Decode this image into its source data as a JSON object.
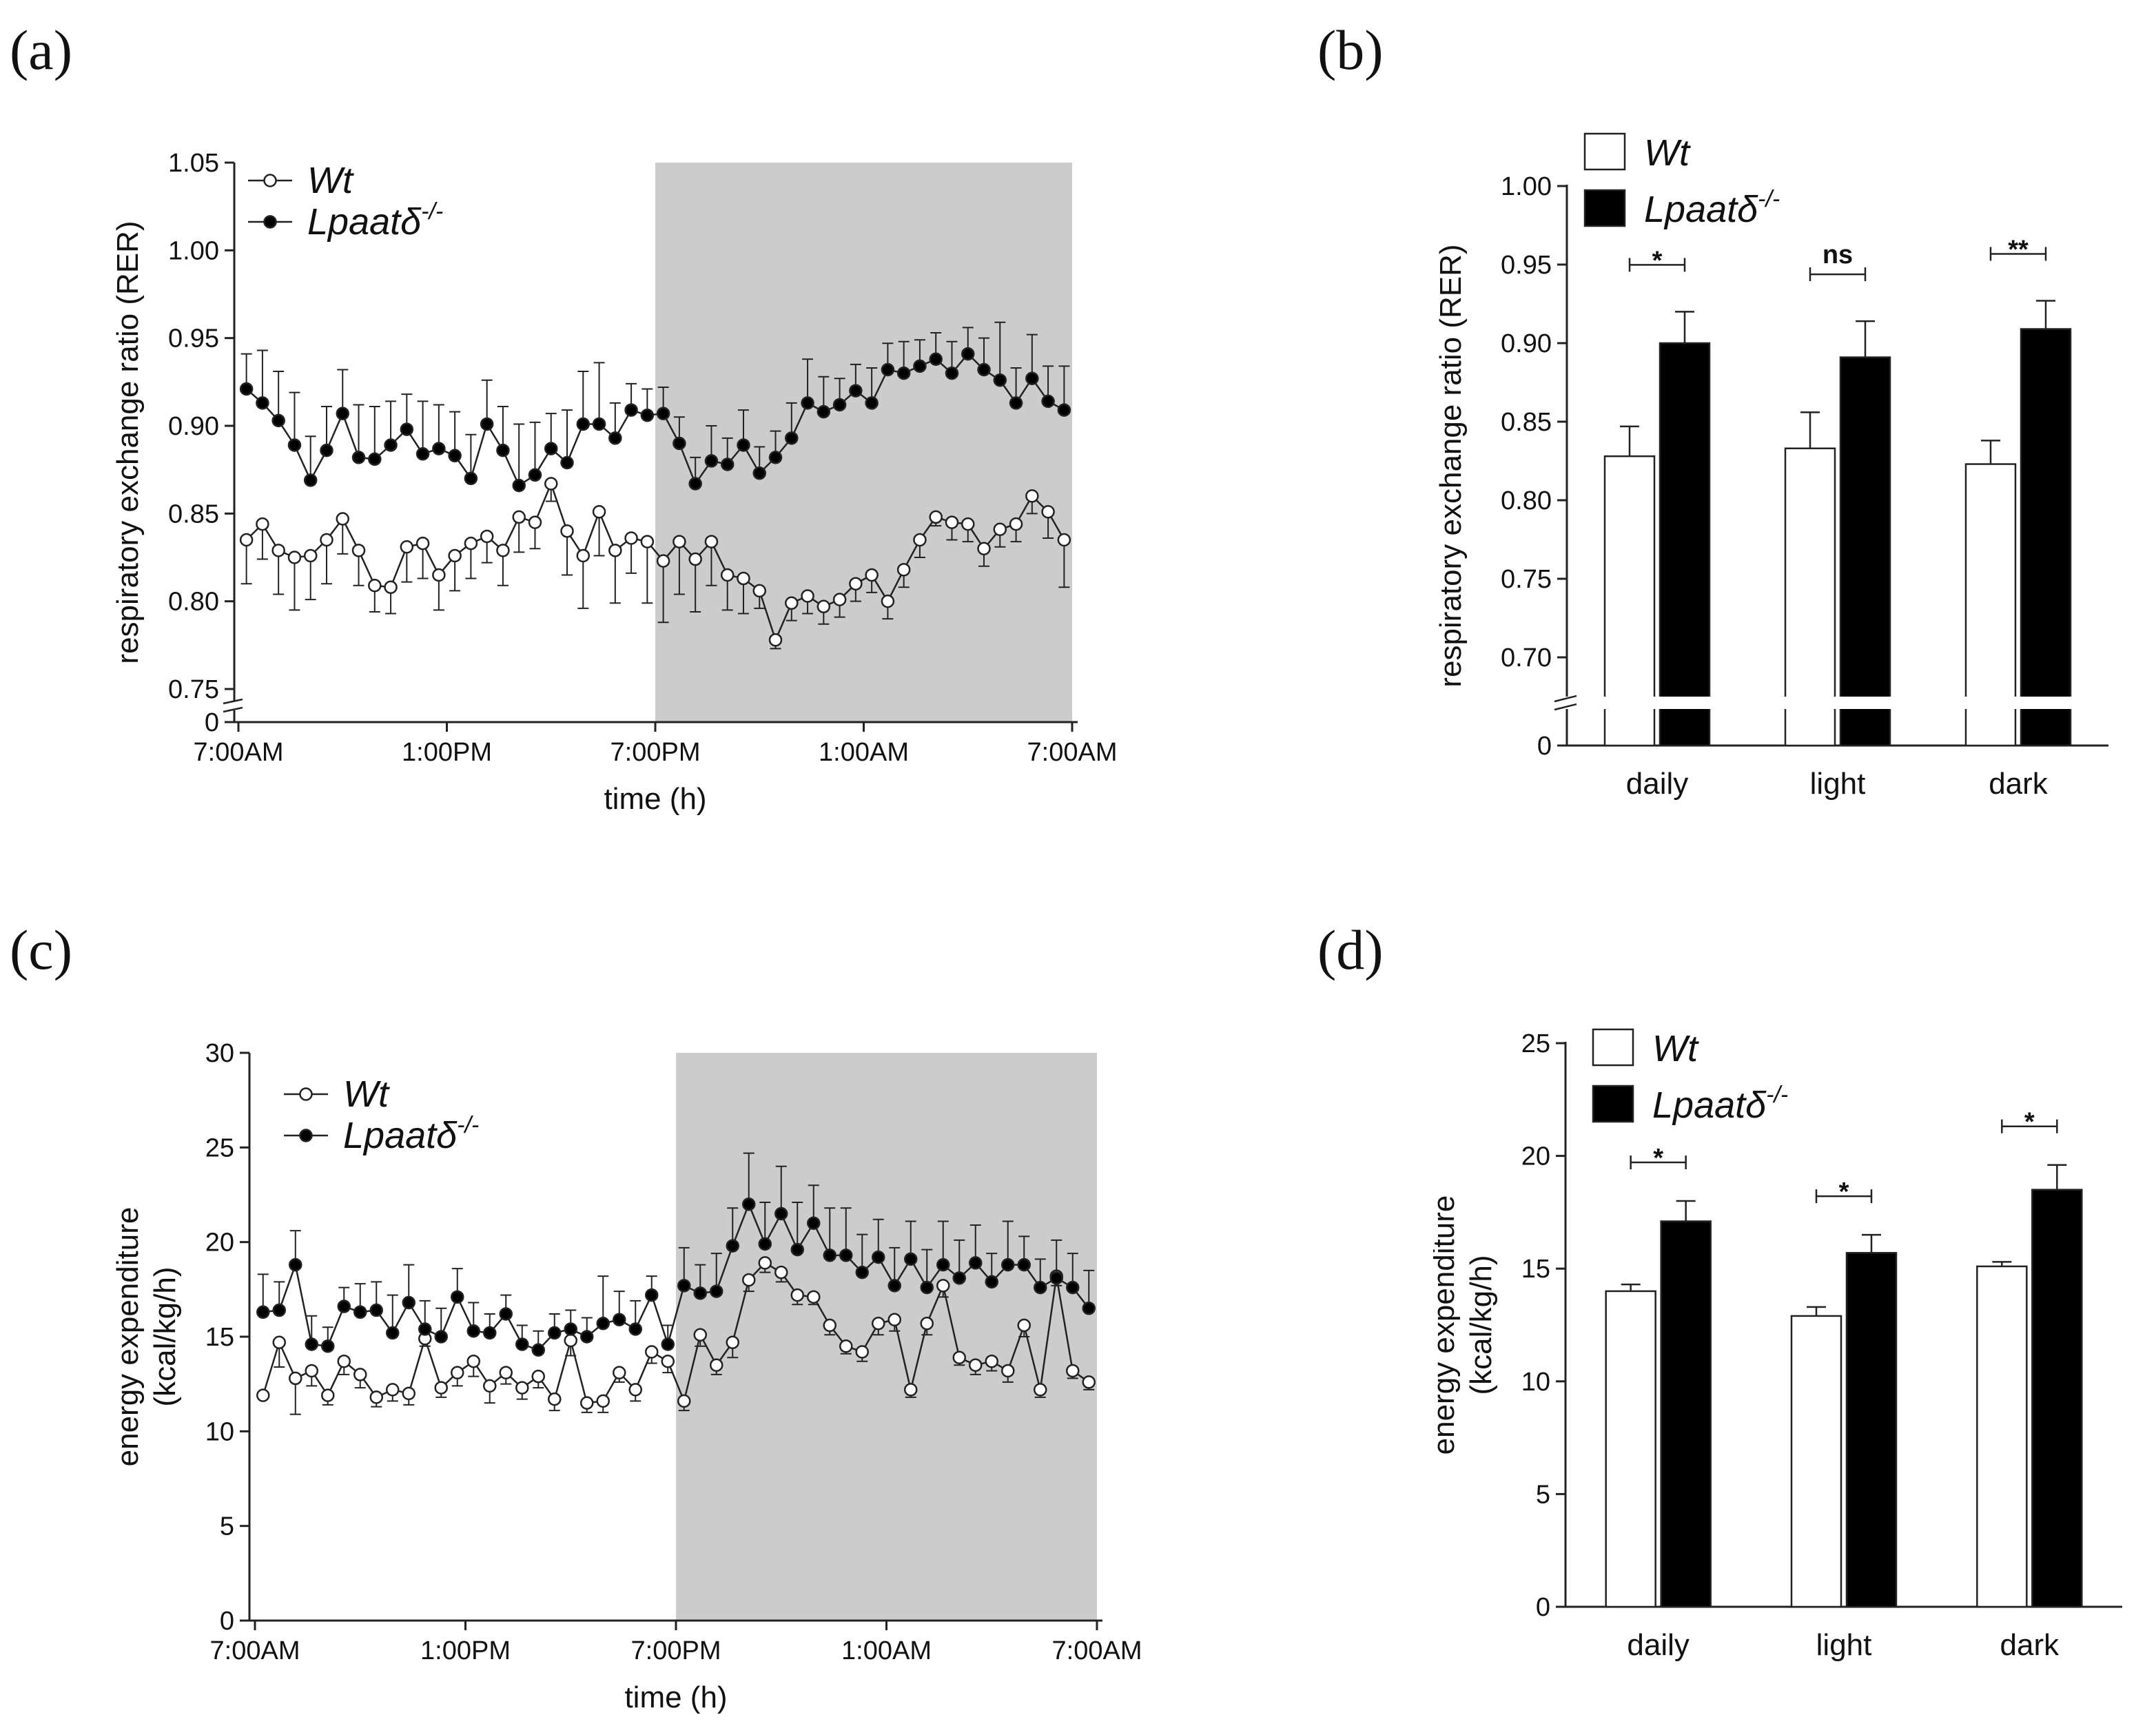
{
  "figure": {
    "panel_labels": [
      "(a)",
      "(b)",
      "(c)",
      "(d)"
    ]
  },
  "colors": {
    "wt_fill": "#ffffff",
    "ko_fill": "#000000",
    "dark_phase": "#cccccc",
    "line": "#222222"
  },
  "chart_data": [
    {
      "id": "a",
      "type": "line",
      "title": "",
      "xlabel": "time (h)",
      "ylabel": "respiratory exchange ratio (RER)",
      "x_ticks": [
        "7:00AM",
        "1:00PM",
        "7:00PM",
        "1:00AM",
        "7:00AM"
      ],
      "x_range_h": [
        0,
        24
      ],
      "y_ticks": [
        "0",
        "0.75",
        "0.80",
        "0.85",
        "0.90",
        "0.95",
        "1.00",
        "1.05"
      ],
      "ylim": [
        0.75,
        1.05
      ],
      "y_break": true,
      "shaded_region_h": [
        12,
        24
      ],
      "legend": [
        "Wt",
        "Lpaatδ-/-"
      ],
      "series": [
        {
          "name": "Wt",
          "marker": "open",
          "values": [
            0.835,
            0.844,
            0.829,
            0.825,
            0.826,
            0.835,
            0.847,
            0.829,
            0.809,
            0.808,
            0.831,
            0.833,
            0.815,
            0.826,
            0.833,
            0.837,
            0.829,
            0.848,
            0.845,
            0.867,
            0.84,
            0.826,
            0.851,
            0.829,
            0.836,
            0.834,
            0.823,
            0.834,
            0.824,
            0.834,
            0.815,
            0.813,
            0.806,
            0.778,
            0.799,
            0.803,
            0.797,
            0.801,
            0.81,
            0.815,
            0.8,
            0.818,
            0.835,
            0.848,
            0.845,
            0.844,
            0.83,
            0.841,
            0.844,
            0.86,
            0.851,
            0.835
          ],
          "errors": [
            0.025,
            0.02,
            0.025,
            0.03,
            0.025,
            0.025,
            0.02,
            0.02,
            0.015,
            0.015,
            0.02,
            0.02,
            0.02,
            0.02,
            0.02,
            0.015,
            0.02,
            0.02,
            0.015,
            0.01,
            0.025,
            0.03,
            0.025,
            0.03,
            0.02,
            0.035,
            0.035,
            0.03,
            0.03,
            0.025,
            0.02,
            0.02,
            0.01,
            0.005,
            0.01,
            0.01,
            0.01,
            0.01,
            0.01,
            0.01,
            0.01,
            0.01,
            0.01,
            0.005,
            0.01,
            0.01,
            0.01,
            0.01,
            0.01,
            0.01,
            0.015,
            0.027
          ]
        },
        {
          "name": "Lpaatδ-/-",
          "marker": "filled",
          "values": [
            0.921,
            0.913,
            0.903,
            0.889,
            0.869,
            0.886,
            0.907,
            0.882,
            0.881,
            0.889,
            0.898,
            0.884,
            0.887,
            0.883,
            0.87,
            0.901,
            0.886,
            0.866,
            0.872,
            0.887,
            0.879,
            0.901,
            0.901,
            0.893,
            0.909,
            0.906,
            0.907,
            0.89,
            0.867,
            0.88,
            0.878,
            0.889,
            0.873,
            0.882,
            0.893,
            0.913,
            0.908,
            0.912,
            0.92,
            0.913,
            0.932,
            0.93,
            0.934,
            0.938,
            0.93,
            0.941,
            0.932,
            0.926,
            0.913,
            0.927,
            0.914,
            0.909
          ],
          "errors": [
            0.02,
            0.03,
            0.028,
            0.03,
            0.025,
            0.025,
            0.025,
            0.03,
            0.03,
            0.025,
            0.02,
            0.03,
            0.025,
            0.025,
            0.025,
            0.025,
            0.025,
            0.035,
            0.03,
            0.02,
            0.03,
            0.03,
            0.035,
            0.02,
            0.015,
            0.015,
            0.015,
            0.015,
            0.015,
            0.02,
            0.015,
            0.02,
            0.015,
            0.015,
            0.02,
            0.025,
            0.02,
            0.015,
            0.015,
            0.02,
            0.015,
            0.018,
            0.015,
            0.015,
            0.018,
            0.015,
            0.018,
            0.033,
            0.02,
            0.025,
            0.02,
            0.025
          ]
        }
      ]
    },
    {
      "id": "b",
      "type": "bar",
      "title": "",
      "xlabel": "",
      "ylabel": "respiratory exchange ratio (RER)",
      "categories": [
        "daily",
        "light",
        "dark"
      ],
      "y_ticks": [
        "0",
        "0.70",
        "0.75",
        "0.80",
        "0.85",
        "0.90",
        "0.95",
        "1.00"
      ],
      "ylim": [
        0.7,
        1.0
      ],
      "y_break": true,
      "legend": [
        "Wt",
        "Lpaatδ-/-"
      ],
      "series": [
        {
          "name": "Wt",
          "values": [
            0.828,
            0.833,
            0.823
          ],
          "errors": [
            0.019,
            0.023,
            0.015
          ]
        },
        {
          "name": "Lpaatδ-/-",
          "values": [
            0.9,
            0.891,
            0.909
          ],
          "errors": [
            0.02,
            0.023,
            0.018
          ]
        }
      ],
      "significance": [
        "*",
        "ns",
        "**"
      ]
    },
    {
      "id": "c",
      "type": "line",
      "title": "",
      "xlabel": "time (h)",
      "ylabel": "energy expenditure (kcal/kg/h)",
      "ylabel_lines": [
        "energy expenditure",
        "(kcal/kg/h)"
      ],
      "x_ticks": [
        "7:00AM",
        "1:00PM",
        "7:00PM",
        "1:00AM",
        "7:00AM"
      ],
      "x_range_h": [
        0,
        24
      ],
      "y_ticks": [
        "0",
        "5",
        "10",
        "15",
        "20",
        "25",
        "30"
      ],
      "ylim": [
        0,
        30
      ],
      "shaded_region_h": [
        12,
        24
      ],
      "legend": [
        "Wt",
        "Lpaatδ-/-"
      ],
      "series": [
        {
          "name": "Wt",
          "marker": "open",
          "values": [
            11.9,
            14.7,
            12.8,
            13.2,
            11.9,
            13.7,
            13.0,
            11.8,
            12.2,
            12.0,
            14.9,
            12.3,
            13.1,
            13.7,
            12.4,
            13.1,
            12.3,
            12.9,
            11.7,
            14.8,
            11.5,
            11.6,
            13.1,
            12.2,
            14.2,
            13.7,
            11.6,
            15.1,
            13.5,
            14.7,
            18.0,
            18.9,
            18.4,
            17.2,
            17.1,
            15.6,
            14.5,
            14.2,
            15.7,
            15.9,
            12.2,
            15.7,
            17.7,
            13.9,
            13.5,
            13.7,
            13.2,
            15.6,
            12.2,
            18.2,
            13.2,
            12.6
          ],
          "errors": [
            0.0,
            1.3,
            1.9,
            0.8,
            0.5,
            0.7,
            0.7,
            0.5,
            0.6,
            0.6,
            0.4,
            0.5,
            0.7,
            0.8,
            0.9,
            0.6,
            0.6,
            0.6,
            0.6,
            0.8,
            0.5,
            0.6,
            0.5,
            0.6,
            0.6,
            0.6,
            0.5,
            0.6,
            0.5,
            0.8,
            0.6,
            0.5,
            0.5,
            0.5,
            0.4,
            0.5,
            0.4,
            0.5,
            0.6,
            0.6,
            0.4,
            0.6,
            0.6,
            0.4,
            0.5,
            0.5,
            0.6,
            0.6,
            0.4,
            0.5,
            0.4,
            0.4
          ]
        },
        {
          "name": "Lpaatδ-/-",
          "marker": "filled",
          "values": [
            16.3,
            16.4,
            18.8,
            14.6,
            14.5,
            16.6,
            16.3,
            16.4,
            15.2,
            16.8,
            15.4,
            15.0,
            17.1,
            15.3,
            15.2,
            16.2,
            14.6,
            14.3,
            15.2,
            15.4,
            15.0,
            15.7,
            15.9,
            15.4,
            17.2,
            14.6,
            17.7,
            17.3,
            17.4,
            19.8,
            22.0,
            19.9,
            21.5,
            19.6,
            21.0,
            19.3,
            19.3,
            18.4,
            19.2,
            17.7,
            19.1,
            17.6,
            18.8,
            18.1,
            18.9,
            17.9,
            18.8,
            18.8,
            17.6,
            18.1,
            17.6,
            16.5
          ],
          "errors": [
            2.0,
            1.5,
            1.8,
            1.5,
            1.0,
            1.0,
            1.5,
            1.5,
            2.0,
            2.0,
            1.5,
            1.5,
            1.5,
            1.5,
            1.0,
            1.0,
            1.0,
            1.0,
            1.0,
            1.0,
            1.0,
            2.5,
            1.5,
            1.5,
            1.0,
            1.0,
            2.0,
            1.5,
            2.0,
            2.0,
            2.7,
            2.2,
            2.5,
            2.5,
            2.0,
            2.5,
            2.5,
            2.0,
            2.0,
            2.0,
            2.0,
            2.0,
            2.3,
            2.0,
            2.0,
            1.5,
            2.3,
            1.5,
            1.5,
            2.0,
            1.8,
            2.0
          ]
        }
      ]
    },
    {
      "id": "d",
      "type": "bar",
      "title": "",
      "xlabel": "",
      "ylabel": "energy expenditure (kcal/kg/h)",
      "ylabel_lines": [
        "energy expenditure",
        "(kcal/kg/h)"
      ],
      "categories": [
        "daily",
        "light",
        "dark"
      ],
      "y_ticks": [
        "0",
        "5",
        "10",
        "15",
        "20",
        "25"
      ],
      "ylim": [
        0,
        25
      ],
      "legend": [
        "Wt",
        "Lpaatδ-/-"
      ],
      "series": [
        {
          "name": "Wt",
          "values": [
            14.0,
            12.9,
            15.1
          ],
          "errors": [
            0.3,
            0.4,
            0.2
          ]
        },
        {
          "name": "Lpaatδ-/-",
          "values": [
            17.1,
            15.7,
            18.5
          ],
          "errors": [
            0.9,
            0.8,
            1.1
          ]
        }
      ],
      "significance": [
        "*",
        "*",
        "*"
      ]
    }
  ]
}
